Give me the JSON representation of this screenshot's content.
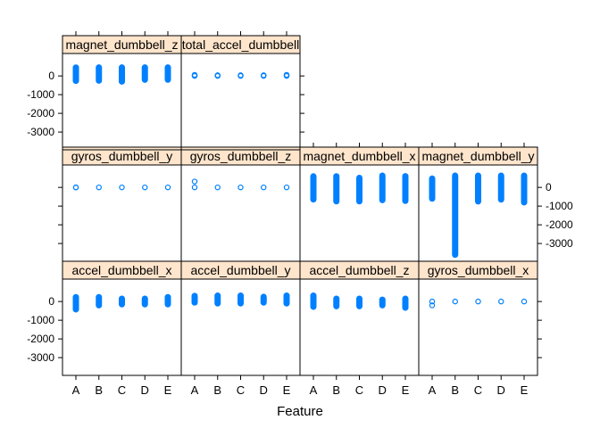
{
  "chart_data": {
    "type": "scatter",
    "xlabel": "Feature",
    "categories": [
      "A",
      "B",
      "C",
      "D",
      "E"
    ],
    "y_ticks": [
      0,
      -1000,
      -2000,
      -3000
    ],
    "y_tick_labels": [
      "0",
      "-1000",
      "-2000",
      "-3000"
    ],
    "ylim": [
      -3950,
      1200
    ],
    "layout": "lattice strip plot, 4 columns x 3 rows, 10 panels",
    "point_color": "#0080ff",
    "strip_color": "#ffe5cc",
    "panels": [
      {
        "title": "accel_dumbbell_x",
        "row": 0,
        "col": 0,
        "values": {
          "A": [
            -419,
            -300,
            -150,
            0,
            150,
            235
          ],
          "B": [
            -200,
            -50,
            100,
            235
          ],
          "C": [
            -150,
            0,
            150
          ],
          "D": [
            -150,
            0,
            150
          ],
          "E": [
            -150,
            50,
            235
          ]
        }
      },
      {
        "title": "accel_dumbbell_y",
        "row": 0,
        "col": 1,
        "values": {
          "A": [
            -50,
            50,
            150,
            300
          ],
          "B": [
            -100,
            50,
            200,
            315
          ],
          "C": [
            -100,
            50,
            200,
            315
          ],
          "D": [
            -50,
            100,
            250
          ],
          "E": [
            -100,
            50,
            200,
            315
          ]
        }
      },
      {
        "title": "accel_dumbbell_z",
        "row": 0,
        "col": 2,
        "values": {
          "A": [
            -280,
            -100,
            50,
            200,
            315
          ],
          "B": [
            -250,
            -100,
            50,
            150
          ],
          "C": [
            -250,
            -100,
            50,
            150
          ],
          "D": [
            -200,
            -50,
            100
          ],
          "E": [
            -330,
            -150,
            0,
            150
          ]
        }
      },
      {
        "title": "gyros_dumbbell_x",
        "row": 0,
        "col": 3,
        "values": {
          "A": [
            -204,
            2
          ],
          "B": [
            2
          ],
          "C": [
            2
          ],
          "D": [
            2
          ],
          "E": [
            2
          ]
        }
      },
      {
        "title": "gyros_dumbbell_y",
        "row": 1,
        "col": 0,
        "values": {
          "A": [
            -2,
            3
          ],
          "B": [
            0
          ],
          "C": [
            0
          ],
          "D": [
            0
          ],
          "E": [
            0
          ]
        }
      },
      {
        "title": "gyros_dumbbell_z",
        "row": 1,
        "col": 1,
        "values": {
          "A": [
            0,
            317
          ],
          "B": [
            0
          ],
          "C": [
            0
          ],
          "D": [
            0
          ],
          "E": [
            0
          ]
        }
      },
      {
        "title": "magnet_dumbbell_x",
        "row": 1,
        "col": 2,
        "values": {
          "A": [
            -643,
            -400,
            -100,
            200,
            590
          ],
          "B": [
            -744,
            -400,
            -100,
            200,
            592
          ],
          "C": [
            -742,
            -400,
            -100,
            200,
            510
          ],
          "D": [
            -680,
            -400,
            -100,
            200,
            630
          ],
          "E": [
            -720,
            -400,
            -100,
            200,
            600
          ]
        }
      },
      {
        "title": "magnet_dumbbell_y",
        "row": 1,
        "col": 3,
        "values": {
          "A": [
            -600,
            -250,
            0,
            250,
            470
          ],
          "B": [
            -3600,
            -700,
            -300,
            0,
            300,
            630
          ],
          "C": [
            -750,
            -300,
            0,
            300,
            630
          ],
          "D": [
            -650,
            -300,
            0,
            300,
            630
          ],
          "E": [
            -800,
            -300,
            0,
            300,
            630
          ]
        }
      },
      {
        "title": "magnet_dumbbell_z",
        "row": 2,
        "col": 0,
        "values": {
          "A": [
            -262,
            0,
            200,
            450
          ],
          "B": [
            -250,
            0,
            200,
            452
          ],
          "C": [
            -300,
            0,
            200,
            452
          ],
          "D": [
            -200,
            0,
            200,
            452
          ],
          "E": [
            -200,
            0,
            200,
            452
          ]
        }
      },
      {
        "title": "total_accel_dumbbell",
        "row": 2,
        "col": 1,
        "values": {
          "A": [
            0,
            20,
            40,
            58
          ],
          "B": [
            0,
            20,
            40
          ],
          "C": [
            0,
            20,
            40
          ],
          "D": [
            0,
            20,
            40
          ],
          "E": [
            0,
            20,
            40,
            58
          ]
        }
      }
    ]
  }
}
